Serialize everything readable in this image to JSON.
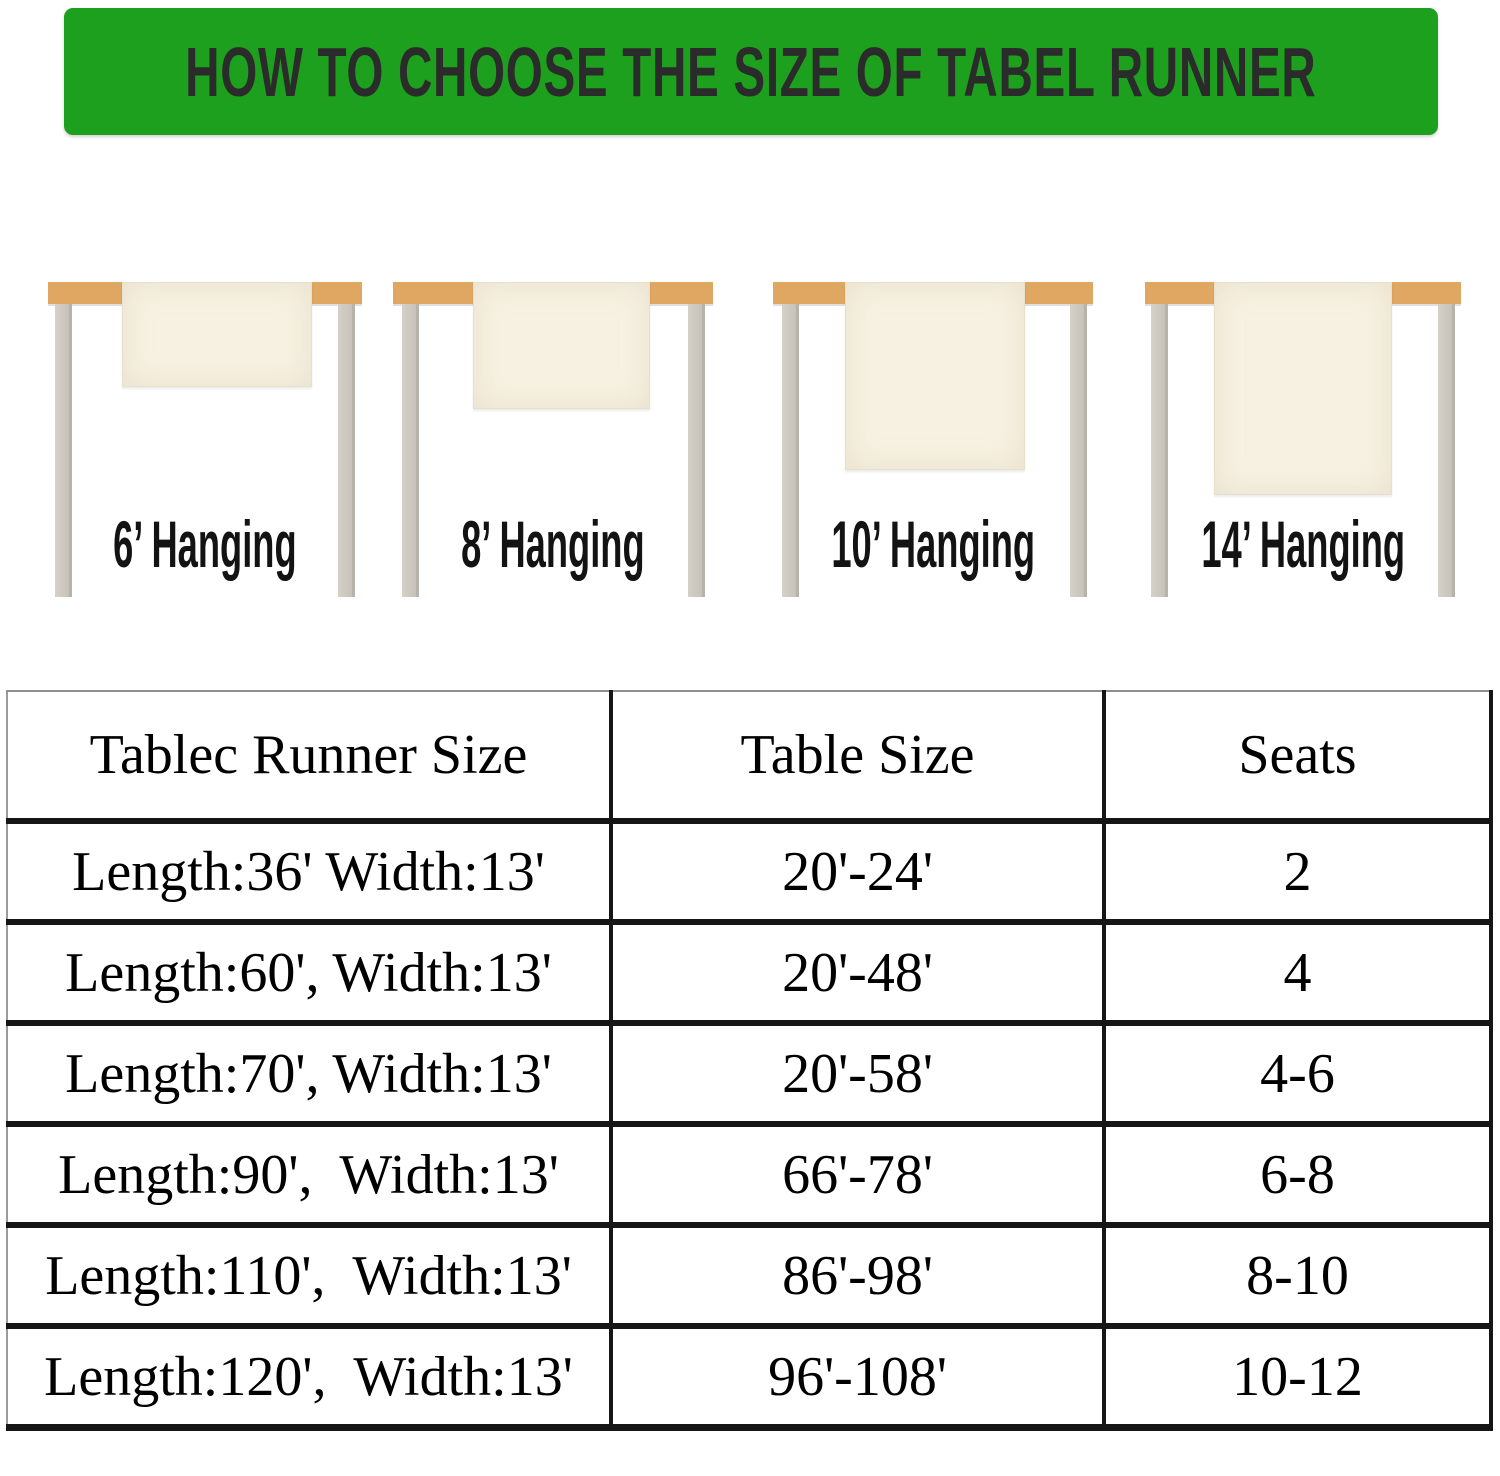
{
  "banner": {
    "title": "HOW TO CHOOSE THE SIZE OF TABEL RUNNER",
    "bg_color": "#1da01d",
    "text_color": "#2b2b2b"
  },
  "figures": [
    {
      "label": "6’ Hanging"
    },
    {
      "label": "8’ Hanging"
    },
    {
      "label": "10’ Hanging"
    },
    {
      "label": "14’ Hanging"
    }
  ],
  "palette": {
    "tabletop_wood": "#e0a763",
    "runner_fabric": "#f6f1e1",
    "table_leg": "#cbc7c0"
  },
  "size_table": {
    "headers": [
      "Tablec Runner Size",
      "Table Size",
      "Seats"
    ],
    "rows": [
      [
        "Length:36' Width:13'",
        "20'-24'",
        "2"
      ],
      [
        "Length:60', Width:13'",
        "20'-48'",
        "4"
      ],
      [
        "Length:70', Width:13'",
        "20'-58'",
        "4-6"
      ],
      [
        "Length:90',  Width:13'",
        "66'-78'",
        "6-8"
      ],
      [
        "Length:110',  Width:13'",
        "86'-98'",
        "8-10"
      ],
      [
        "Length:120',  Width:13'",
        "96'-108'",
        "10-12"
      ]
    ]
  }
}
